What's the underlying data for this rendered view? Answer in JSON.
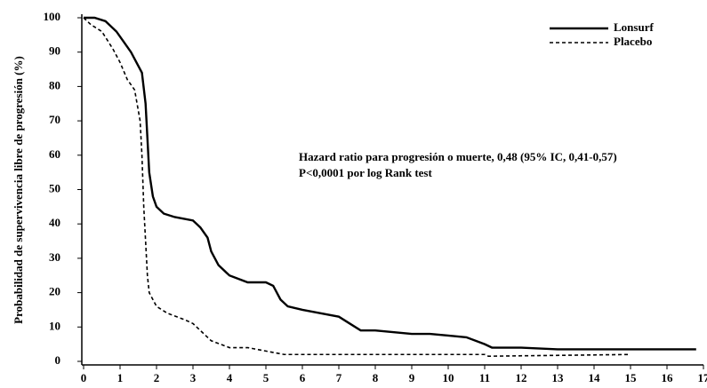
{
  "chart_data": {
    "type": "line",
    "ylabel": "Probabilidad de supervivencia libre de progresión (%)",
    "annotations": [
      "Hazard ratio para progresión o muerte, 0,48 (95% IC, 0,41-0,57)",
      "P<0,0001 por log Rank test"
    ],
    "xlim": [
      0,
      17
    ],
    "ylim": [
      0,
      100
    ],
    "xticks": [
      0,
      1,
      2,
      3,
      4,
      5,
      6,
      7,
      8,
      9,
      10,
      11,
      12,
      13,
      14,
      15,
      16,
      17
    ],
    "yticks": [
      0,
      10,
      20,
      30,
      40,
      50,
      60,
      70,
      80,
      90,
      100
    ],
    "legend": "top-right",
    "series": [
      {
        "name": "Lonsurf",
        "color": "#000000",
        "line_style": "solid",
        "x": [
          0,
          0.3,
          0.6,
          0.9,
          1.1,
          1.3,
          1.5,
          1.6,
          1.7,
          1.75,
          1.8,
          1.9,
          2.0,
          2.2,
          2.5,
          3.0,
          3.2,
          3.4,
          3.5,
          3.7,
          4.0,
          4.5,
          5.0,
          5.2,
          5.4,
          5.6,
          6.0,
          6.5,
          7.0,
          7.3,
          7.6,
          8.0,
          9.0,
          9.5,
          10.0,
          10.5,
          11.0,
          11.2,
          12.0,
          13.0,
          16.8
        ],
        "values": [
          100,
          100,
          99,
          96,
          93,
          90,
          86,
          84,
          75,
          65,
          55,
          48,
          45,
          43,
          42,
          41,
          39,
          36,
          32,
          28,
          25,
          23,
          23,
          22,
          18,
          16,
          15,
          14,
          13,
          11,
          9,
          9,
          8,
          8,
          7.5,
          7,
          5,
          4,
          4,
          3.5,
          3.5
        ]
      },
      {
        "name": "Placebo",
        "color": "#000000",
        "line_style": "dashed",
        "x": [
          0,
          0.2,
          0.5,
          0.8,
          1.0,
          1.2,
          1.4,
          1.55,
          1.6,
          1.65,
          1.7,
          1.75,
          1.8,
          2.0,
          2.3,
          2.8,
          3.0,
          3.5,
          4.0,
          4.5,
          5.0,
          5.5,
          7.0,
          9.0,
          11.0,
          11.1,
          15.0
        ],
        "values": [
          100,
          98,
          96,
          91,
          87,
          82,
          79,
          70,
          60,
          45,
          35,
          25,
          20,
          16,
          14,
          12,
          11,
          6,
          4,
          4,
          3,
          2,
          2,
          2,
          2,
          1.5,
          2
        ]
      }
    ]
  }
}
